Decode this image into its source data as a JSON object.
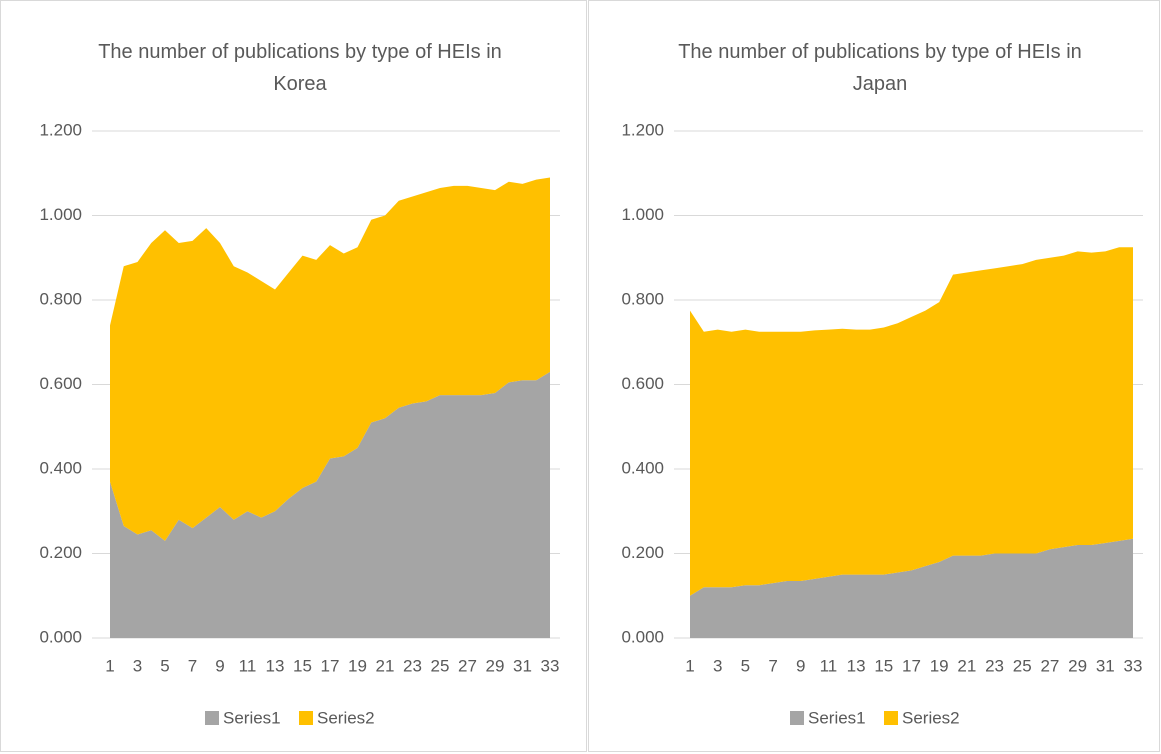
{
  "chart_data": [
    {
      "type": "area",
      "stacked": true,
      "title": "The number of publications by type of HEIs in Korea",
      "categories": [
        1,
        null,
        3,
        null,
        5,
        null,
        7,
        null,
        9,
        null,
        11,
        null,
        13,
        null,
        15,
        null,
        17,
        null,
        19,
        null,
        21,
        null,
        23,
        null,
        25,
        null,
        27,
        null,
        29,
        null,
        31,
        null,
        33
      ],
      "series": [
        {
          "name": "Series1",
          "color": "#a5a5a5",
          "values": [
            0.37,
            0.265,
            0.245,
            0.255,
            0.23,
            0.28,
            0.26,
            0.285,
            0.31,
            0.28,
            0.3,
            0.285,
            0.3,
            0.33,
            0.355,
            0.37,
            0.425,
            0.43,
            0.45,
            0.51,
            0.52,
            0.545,
            0.555,
            0.56,
            0.575,
            0.575,
            0.575,
            0.575,
            0.58,
            0.605,
            0.61,
            0.61,
            0.63
          ]
        },
        {
          "name": "Series2",
          "color": "#ffc000",
          "values": [
            0.37,
            0.615,
            0.645,
            0.68,
            0.735,
            0.655,
            0.68,
            0.685,
            0.625,
            0.6,
            0.565,
            0.56,
            0.525,
            0.535,
            0.55,
            0.525,
            0.505,
            0.48,
            0.475,
            0.48,
            0.48,
            0.49,
            0.49,
            0.495,
            0.49,
            0.495,
            0.495,
            0.49,
            0.48,
            0.475,
            0.465,
            0.475,
            0.46
          ]
        }
      ],
      "ylim": [
        0,
        1.2
      ],
      "yticks": [
        {
          "value": 0,
          "label": "0.000"
        },
        {
          "value": 0.2,
          "label": "0.200"
        },
        {
          "value": 0.4,
          "label": "0.400"
        },
        {
          "value": 0.6,
          "label": "0.600"
        },
        {
          "value": 0.8,
          "label": "0.800"
        },
        {
          "value": 1,
          "label": "1.000"
        },
        {
          "value": 1.2,
          "label": "1.200"
        }
      ],
      "grid": true,
      "legend": "bottom"
    },
    {
      "type": "area",
      "stacked": true,
      "title": "The number of publications by type of HEIs in Japan",
      "categories": [
        1,
        null,
        3,
        null,
        5,
        null,
        7,
        null,
        9,
        null,
        11,
        null,
        13,
        null,
        15,
        null,
        17,
        null,
        19,
        null,
        21,
        null,
        23,
        null,
        25,
        null,
        27,
        null,
        29,
        null,
        31,
        null,
        33
      ],
      "series": [
        {
          "name": "Series1",
          "color": "#a5a5a5",
          "values": [
            0.1,
            0.12,
            0.12,
            0.12,
            0.125,
            0.125,
            0.13,
            0.135,
            0.135,
            0.14,
            0.145,
            0.15,
            0.15,
            0.15,
            0.15,
            0.155,
            0.16,
            0.17,
            0.18,
            0.195,
            0.195,
            0.195,
            0.2,
            0.2,
            0.2,
            0.2,
            0.21,
            0.215,
            0.22,
            0.22,
            0.225,
            0.23,
            0.235
          ]
        },
        {
          "name": "Series2",
          "color": "#ffc000",
          "values": [
            0.675,
            0.605,
            0.61,
            0.605,
            0.605,
            0.6,
            0.595,
            0.59,
            0.59,
            0.588,
            0.585,
            0.582,
            0.58,
            0.58,
            0.585,
            0.59,
            0.6,
            0.605,
            0.615,
            0.665,
            0.67,
            0.675,
            0.675,
            0.68,
            0.685,
            0.695,
            0.69,
            0.69,
            0.695,
            0.692,
            0.69,
            0.695,
            0.69
          ]
        }
      ],
      "ylim": [
        0,
        1.2
      ],
      "yticks": [
        {
          "value": 0,
          "label": "0.000"
        },
        {
          "value": 0.2,
          "label": "0.200"
        },
        {
          "value": 0.4,
          "label": "0.400"
        },
        {
          "value": 0.6,
          "label": "0.600"
        },
        {
          "value": 0.8,
          "label": "0.800"
        },
        {
          "value": 1,
          "label": "1.000"
        },
        {
          "value": 1.2,
          "label": "1.200"
        }
      ],
      "grid": true,
      "legend": "bottom"
    }
  ]
}
